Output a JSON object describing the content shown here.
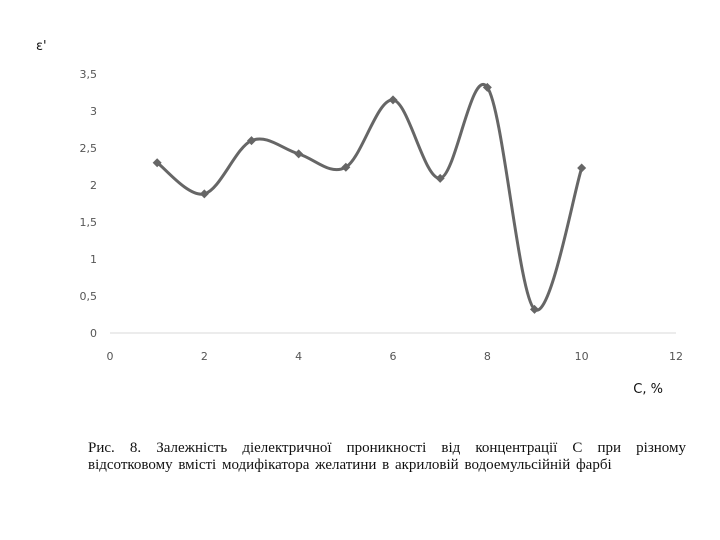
{
  "chart_data": {
    "type": "line",
    "title": "",
    "xlabel": "C, %",
    "ylabel": "ε'",
    "xlim": [
      0,
      12
    ],
    "ylim": [
      0,
      3.5
    ],
    "x_ticks": [
      "0",
      "2",
      "4",
      "6",
      "8",
      "10",
      "12"
    ],
    "y_ticks": [
      "0",
      "0,5",
      "1",
      "1,5",
      "2",
      "2,5",
      "3",
      "3,5"
    ],
    "grid": false,
    "smooth": true,
    "series": [
      {
        "x": [
          1,
          2,
          3,
          4,
          5,
          6,
          7,
          8,
          9,
          10
        ],
        "y": [
          2.3,
          1.88,
          2.6,
          2.42,
          2.24,
          3.15,
          2.09,
          3.32,
          0.32,
          2.23
        ],
        "color": "#666666"
      }
    ]
  },
  "caption": "Рис. 8. Залежність діелектричної проникності  від концентрації C при різному відсотковому вмісті модифікатора желатини в акриловій водоемульсійній фарбі"
}
